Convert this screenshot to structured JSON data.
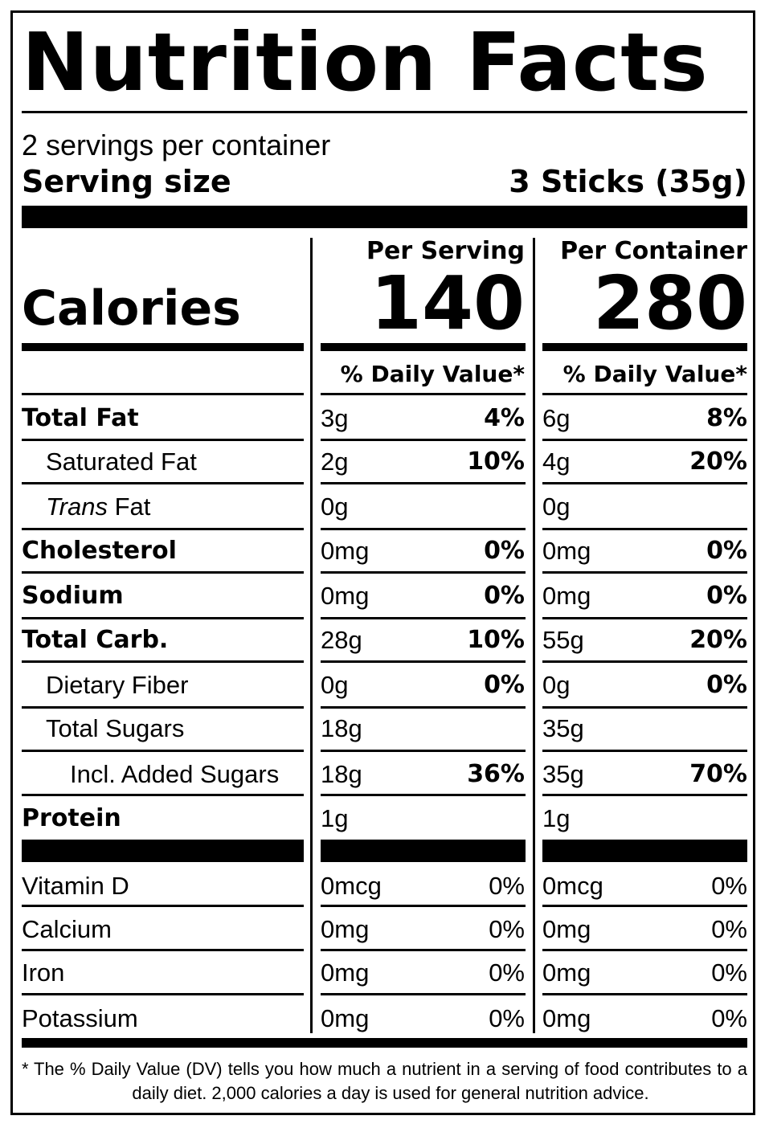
{
  "title": "Nutrition Facts",
  "servings_per_container": "2 servings per container",
  "serving_size_label": "Serving size",
  "serving_size_value": "3 Sticks (35g)",
  "columns": {
    "per_serving_label": "Per Serving",
    "per_container_label": "Per Container",
    "daily_value_label": "% Daily Value*"
  },
  "calories": {
    "label": "Calories",
    "per_serving": "140",
    "per_container": "280"
  },
  "nutrients": [
    {
      "label": "Total Fat",
      "label_parts": [
        "Total Fat"
      ],
      "style": "bold",
      "indent": 0,
      "serving_amount": "3g",
      "serving_dv": "4%",
      "container_amount": "6g",
      "container_dv": "8%"
    },
    {
      "label": "Saturated Fat",
      "style": "normal",
      "indent": 1,
      "serving_amount": "2g",
      "serving_dv": "10%",
      "container_amount": "4g",
      "container_dv": "20%"
    },
    {
      "label": "Trans Fat",
      "italic_part": "Trans",
      "rest_part": " Fat",
      "style": "normal",
      "indent": 1,
      "serving_amount": "0g",
      "serving_dv": "",
      "container_amount": "0g",
      "container_dv": ""
    },
    {
      "label": "Cholesterol",
      "style": "bold",
      "indent": 0,
      "serving_amount": "0mg",
      "serving_dv": "0%",
      "container_amount": "0mg",
      "container_dv": "0%"
    },
    {
      "label": "Sodium",
      "style": "bold",
      "indent": 0,
      "serving_amount": "0mg",
      "serving_dv": "0%",
      "container_amount": "0mg",
      "container_dv": "0%"
    },
    {
      "label": "Total Carb.",
      "style": "bold",
      "indent": 0,
      "serving_amount": "28g",
      "serving_dv": "10%",
      "container_amount": "55g",
      "container_dv": "20%"
    },
    {
      "label": "Dietary Fiber",
      "style": "normal",
      "indent": 1,
      "serving_amount": "0g",
      "serving_dv": "0%",
      "container_amount": "0g",
      "container_dv": "0%"
    },
    {
      "label": "Total Sugars",
      "style": "normal",
      "indent": 1,
      "serving_amount": "18g",
      "serving_dv": "",
      "container_amount": "35g",
      "container_dv": ""
    },
    {
      "label": "Incl. Added Sugars",
      "style": "normal",
      "indent": 2,
      "serving_amount": "18g",
      "serving_dv": "36%",
      "container_amount": "35g",
      "container_dv": "70%"
    },
    {
      "label": "Protein",
      "style": "bold",
      "indent": 0,
      "serving_amount": "1g",
      "serving_dv": "",
      "container_amount": "1g",
      "container_dv": ""
    }
  ],
  "vitamins": [
    {
      "label": "Vitamin D",
      "serving_amount": "0mcg",
      "serving_dv": "0%",
      "container_amount": "0mcg",
      "container_dv": "0%"
    },
    {
      "label": "Calcium",
      "serving_amount": "0mg",
      "serving_dv": "0%",
      "container_amount": "0mg",
      "container_dv": "0%"
    },
    {
      "label": "Iron",
      "serving_amount": "0mg",
      "serving_dv": "0%",
      "container_amount": "0mg",
      "container_dv": "0%"
    },
    {
      "label": "Potassium",
      "serving_amount": "0mg",
      "serving_dv": "0%",
      "container_amount": "0mg",
      "container_dv": "0%"
    }
  ],
  "footnote_star": "*",
  "footnote": "The % Daily Value (DV) tells you how much a nutrient in a serving of food contributes to a daily diet. 2,000 calories a day is used for general nutrition advice."
}
